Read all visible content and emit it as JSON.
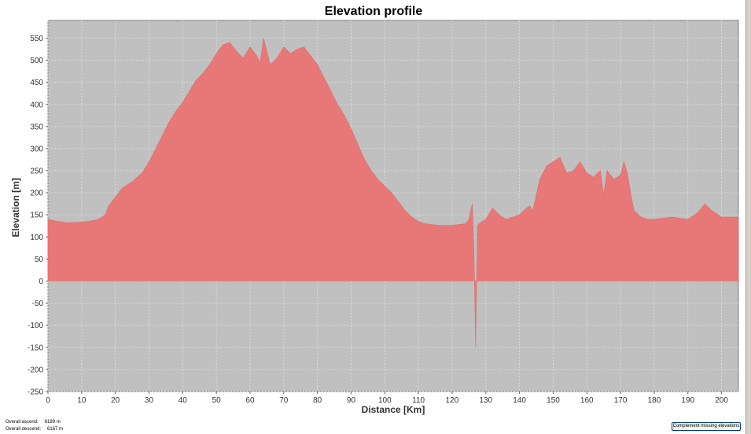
{
  "chart_data": {
    "type": "area",
    "title": "Elevation profile",
    "xlabel": "Distance [Km]",
    "ylabel": "Elevation [m]",
    "xlim": [
      0,
      205
    ],
    "ylim": [
      -250,
      590
    ],
    "x_ticks": [
      0,
      10,
      20,
      30,
      40,
      50,
      60,
      70,
      80,
      90,
      100,
      110,
      120,
      130,
      140,
      150,
      160,
      170,
      180,
      190,
      200
    ],
    "y_ticks": [
      -250,
      -200,
      -150,
      -100,
      -50,
      0,
      50,
      100,
      150,
      200,
      250,
      300,
      350,
      400,
      450,
      500,
      550
    ],
    "grid": true,
    "colors": {
      "fill": "#e87878",
      "plot_background": "#c0c0c0",
      "grid": "#e0e0e0"
    },
    "series": [
      {
        "x": [
          0,
          3,
          6,
          9,
          12,
          15,
          17,
          18,
          20,
          22,
          25,
          28,
          30,
          32,
          34,
          36,
          38,
          40,
          42,
          44,
          46,
          48,
          50,
          52,
          54,
          56,
          58,
          60,
          62,
          63,
          64,
          65,
          66,
          68,
          70,
          72,
          74,
          76,
          78,
          80,
          82,
          84,
          86,
          88,
          90,
          92,
          94,
          96,
          98,
          100,
          102,
          104,
          106,
          108,
          110,
          112,
          114,
          116,
          118,
          120,
          122,
          124,
          125,
          126,
          126.5,
          127,
          127.5,
          128,
          130,
          132,
          134,
          136,
          138,
          140,
          142,
          143,
          144,
          145,
          146,
          148,
          150,
          152,
          154,
          156,
          158,
          160,
          162,
          164,
          165,
          166,
          168,
          170,
          171,
          172,
          173,
          174,
          176,
          178,
          180,
          185,
          190,
          193,
          195,
          197,
          200,
          203,
          205
        ],
        "y": [
          140,
          135,
          132,
          133,
          135,
          140,
          150,
          170,
          190,
          210,
          225,
          245,
          270,
          300,
          330,
          360,
          385,
          405,
          430,
          455,
          470,
          490,
          515,
          535,
          540,
          520,
          505,
          530,
          510,
          495,
          550,
          520,
          490,
          505,
          530,
          515,
          525,
          530,
          510,
          490,
          460,
          430,
          400,
          375,
          345,
          310,
          275,
          250,
          230,
          215,
          200,
          180,
          160,
          145,
          135,
          130,
          128,
          126,
          126,
          126,
          128,
          130,
          140,
          175,
          60,
          -150,
          125,
          130,
          140,
          165,
          150,
          140,
          145,
          150,
          165,
          170,
          160,
          195,
          230,
          260,
          270,
          280,
          245,
          250,
          270,
          245,
          235,
          250,
          195,
          250,
          230,
          240,
          270,
          245,
          200,
          160,
          145,
          140,
          140,
          145,
          140,
          155,
          175,
          160,
          145,
          145,
          145
        ]
      }
    ]
  },
  "stats": [
    {
      "label": "Overall ascend:",
      "value": "6189 m"
    },
    {
      "label": "Overall descend:",
      "value": "6167 m"
    }
  ],
  "button": {
    "label": "Complement missing elevations"
  }
}
